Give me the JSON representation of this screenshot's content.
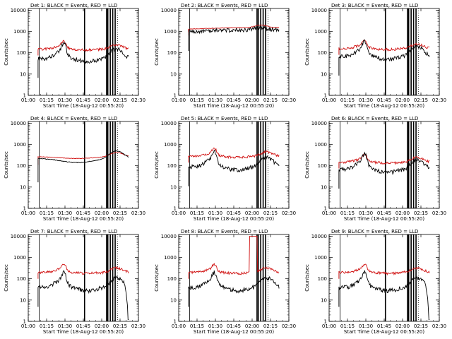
{
  "figure": {
    "xtick_labels": [
      "01:00",
      "01:15",
      "01:30",
      "01:45",
      "02:00",
      "02:15",
      "02:30"
    ],
    "ytick_labels": [
      "1",
      "10",
      "100",
      "1000",
      "10000"
    ],
    "xlabel": "Start Time (18-Aug-12 00:55:20)",
    "ylabel": "Counts/sec"
  },
  "colors": {
    "events": "#000000",
    "lld": "#d01010"
  },
  "chart_data": [
    {
      "type": "line",
      "title": "Det 1: BLACK = Events, RED = LLD",
      "ylog": true,
      "ylim": [
        1,
        12000
      ],
      "xlim": [
        "01:00",
        "02:30"
      ],
      "event_base": 55,
      "lld_base": 150,
      "flare": "small",
      "features": [],
      "vlines": [
        "01:09",
        "01:46",
        "02:04",
        "02:05",
        "02:07",
        "02:09",
        "02:11"
      ],
      "dotted_vlines": [
        "01:00",
        "02:13",
        "02:30"
      ]
    },
    {
      "type": "line",
      "title": "Det 2: BLACK = Events, RED = LLD",
      "ylog": true,
      "ylim": [
        1,
        12000
      ],
      "xlim": [
        "01:00",
        "02:30"
      ],
      "event_base": 1000,
      "lld_base": 1300,
      "flare": "flat",
      "features": [],
      "vlines": [
        "01:09",
        "02:04",
        "02:05",
        "02:07",
        "02:09",
        "02:11"
      ],
      "dotted_vlines": [
        "01:00",
        "02:13",
        "02:30"
      ]
    },
    {
      "type": "line",
      "title": "Det 3: BLACK = Events, RED = LLD",
      "ylog": true,
      "ylim": [
        1,
        12000
      ],
      "xlim": [
        "01:00",
        "02:30"
      ],
      "event_base": 70,
      "lld_base": 160,
      "flare": "small",
      "features": [],
      "vlines": [
        "01:09",
        "01:46",
        "02:04",
        "02:05",
        "02:07",
        "02:09",
        "02:11"
      ],
      "dotted_vlines": [
        "01:00",
        "02:13",
        "02:30"
      ]
    },
    {
      "type": "line",
      "title": "Det 4: BLACK = Events, RED = LLD",
      "ylog": true,
      "ylim": [
        1,
        12000
      ],
      "xlim": [
        "01:00",
        "02:30"
      ],
      "event_base": 140,
      "lld_base": 220,
      "flare": "smooth",
      "features": [],
      "vlines": [
        "01:09",
        "01:46",
        "02:04",
        "02:05",
        "02:07",
        "02:09",
        "02:11"
      ],
      "dotted_vlines": [
        "01:00",
        "02:13",
        "02:30"
      ]
    },
    {
      "type": "line",
      "title": "Det 5: BLACK = Events, RED = LLD",
      "ylog": true,
      "ylim": [
        1,
        12000
      ],
      "xlim": [
        "01:00",
        "02:30"
      ],
      "event_base": 90,
      "lld_base": 280,
      "flare": "small",
      "features": [],
      "vlines": [
        "01:09",
        "02:04",
        "02:05",
        "02:07",
        "02:09",
        "02:11"
      ],
      "dotted_vlines": [
        "01:00",
        "02:13",
        "02:30"
      ]
    },
    {
      "type": "line",
      "title": "Det 6: BLACK = Events, RED = LLD",
      "ylog": true,
      "ylim": [
        1,
        12000
      ],
      "xlim": [
        "01:00",
        "02:30"
      ],
      "event_base": 70,
      "lld_base": 150,
      "flare": "small",
      "features": [],
      "vlines": [
        "01:09",
        "01:46",
        "02:04",
        "02:05",
        "02:07",
        "02:09",
        "02:11"
      ],
      "dotted_vlines": [
        "01:00",
        "02:13",
        "02:30"
      ]
    },
    {
      "type": "line",
      "title": "Det 7: BLACK = Events, RED = LLD",
      "ylog": true,
      "ylim": [
        1,
        12000
      ],
      "xlim": [
        "01:00",
        "02:30"
      ],
      "event_base": 40,
      "lld_base": 200,
      "flare": "small",
      "features": [
        "drop"
      ],
      "vlines": [
        "01:09",
        "01:46",
        "02:04",
        "02:05",
        "02:07",
        "02:09",
        "02:11"
      ],
      "dotted_vlines": [
        "01:00",
        "02:13",
        "02:30"
      ]
    },
    {
      "type": "line",
      "title": "Det 8: BLACK = Events, RED = LLD",
      "ylog": true,
      "ylim": [
        1,
        12000
      ],
      "xlim": [
        "01:00",
        "02:30"
      ],
      "event_base": 40,
      "lld_base": 200,
      "flare": "small",
      "features": [
        "saturate"
      ],
      "vlines": [
        "01:09",
        "02:04",
        "02:05",
        "02:07",
        "02:09",
        "02:11"
      ],
      "dotted_vlines": [
        "01:00",
        "02:13",
        "02:30"
      ]
    },
    {
      "type": "line",
      "title": "Det 9: BLACK = Events, RED = LLD",
      "ylog": true,
      "ylim": [
        1,
        12000
      ],
      "xlim": [
        "01:00",
        "02:30"
      ],
      "event_base": 40,
      "lld_base": 200,
      "flare": "small",
      "features": [
        "drop"
      ],
      "vlines": [
        "01:09",
        "01:46",
        "02:04",
        "02:05",
        "02:07",
        "02:09",
        "02:11"
      ],
      "dotted_vlines": [
        "01:00",
        "02:13",
        "02:30"
      ]
    }
  ]
}
